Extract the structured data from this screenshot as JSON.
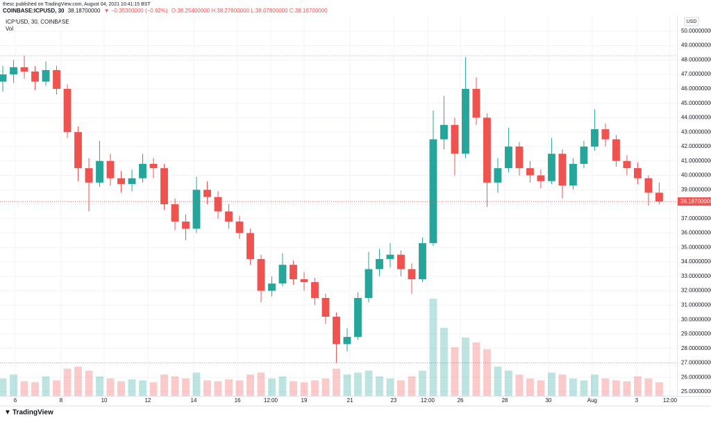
{
  "header": {
    "published": "thesc published on TradingView.com, August 04, 2021 10:41:15 BST",
    "symbol": "COINBASE:ICPUSD, 30",
    "last": "38.18700000",
    "change": "▼ −0.35300000 (−0.92%)",
    "ohlc": "O:38.25400000 H:38.27800000 L:38.07800000 C:38.18700000",
    "legend": "ICP/USD, 30, COINBASE",
    "volume_label": "Vol",
    "currency": "USD",
    "footer": "TradingView"
  },
  "chart_data": {
    "type": "candlestick",
    "up_color": "#26a69a",
    "down_color": "#ef5350",
    "grid": true,
    "open": [
      46.5,
      47.0,
      47.5,
      47.2,
      46.5,
      47.3,
      46.0,
      43.0,
      40.5,
      39.5,
      41.0,
      39.8,
      39.4,
      39.8,
      40.8,
      40.5,
      38.0,
      36.8,
      36.3,
      39.0,
      38.5,
      37.5,
      36.8,
      36.0,
      34.2,
      32.0,
      32.5,
      33.8,
      32.8,
      32.6,
      31.5,
      30.2,
      28.3,
      28.8,
      31.5,
      33.5,
      34.2,
      34.5,
      33.5,
      32.8,
      35.3,
      42.5,
      43.5,
      41.5,
      46.0,
      44.0,
      39.5,
      40.5,
      42.0,
      40.5,
      40.0,
      39.6,
      41.5,
      39.3,
      40.8,
      42.0,
      43.2,
      42.5,
      41.0,
      40.5,
      39.8,
      38.8
    ],
    "high": [
      47.6,
      48.0,
      48.3,
      47.6,
      47.9,
      47.6,
      46.3,
      43.4,
      41.2,
      42.4,
      41.5,
      40.3,
      40.4,
      41.5,
      41.2,
      40.8,
      38.4,
      37.3,
      39.9,
      39.6,
      38.9,
      38.0,
      37.2,
      36.3,
      34.5,
      33.0,
      34.6,
      34.1,
      33.3,
      32.9,
      31.8,
      30.5,
      29.4,
      31.9,
      34.7,
      34.9,
      35.3,
      34.8,
      33.9,
      35.7,
      44.5,
      45.5,
      44.0,
      48.2,
      46.8,
      44.3,
      41.2,
      43.3,
      42.3,
      41.0,
      40.4,
      42.6,
      41.8,
      41.2,
      42.4,
      44.6,
      43.6,
      42.8,
      41.4,
      40.9,
      40.0,
      39.5
    ],
    "low": [
      45.8,
      46.4,
      46.7,
      45.9,
      46.2,
      45.6,
      42.6,
      39.6,
      37.5,
      39.2,
      39.3,
      38.8,
      38.9,
      39.5,
      39.8,
      37.6,
      36.2,
      35.5,
      36.0,
      38.0,
      37.0,
      36.3,
      35.6,
      33.8,
      31.2,
      31.6,
      32.3,
      32.4,
      32.0,
      31.0,
      29.7,
      27.0,
      27.8,
      28.6,
      31.2,
      33.0,
      33.6,
      33.0,
      31.8,
      32.6,
      35.1,
      41.8,
      40.0,
      41.2,
      43.5,
      37.8,
      38.8,
      40.2,
      40.0,
      39.5,
      39.1,
      39.4,
      38.4,
      39.0,
      40.5,
      41.7,
      42.0,
      40.6,
      40.0,
      39.4,
      37.9,
      38.0
    ],
    "close": [
      47.0,
      47.5,
      47.2,
      46.5,
      47.3,
      46.0,
      43.0,
      40.5,
      39.5,
      41.0,
      39.8,
      39.4,
      39.8,
      40.8,
      40.5,
      38.0,
      36.8,
      36.3,
      39.0,
      38.5,
      37.5,
      36.8,
      36.0,
      34.2,
      32.0,
      32.5,
      33.8,
      32.8,
      32.6,
      31.5,
      30.2,
      28.3,
      28.8,
      31.5,
      33.5,
      34.2,
      34.5,
      33.5,
      32.8,
      35.3,
      42.5,
      43.5,
      41.5,
      46.0,
      44.0,
      39.5,
      40.5,
      42.0,
      40.5,
      40.0,
      39.6,
      41.5,
      39.3,
      40.8,
      42.0,
      43.2,
      42.5,
      41.0,
      40.5,
      39.8,
      38.8,
      38.187
    ],
    "volume": [
      18,
      22,
      15,
      14,
      20,
      16,
      28,
      30,
      26,
      20,
      18,
      15,
      17,
      16,
      14,
      22,
      20,
      18,
      24,
      16,
      15,
      17,
      16,
      22,
      24,
      18,
      20,
      15,
      14,
      16,
      18,
      28,
      22,
      24,
      26,
      20,
      18,
      16,
      20,
      26,
      100,
      70,
      50,
      60,
      55,
      48,
      30,
      26,
      22,
      18,
      16,
      24,
      22,
      18,
      16,
      22,
      18,
      16,
      15,
      20,
      18,
      14
    ],
    "volume_lim": [
      0,
      100
    ],
    "xlim": [
      -0.26,
      62.65
    ],
    "ylim": [
      24.71,
      51.1
    ],
    "xticks": [
      {
        "value": 1.16,
        "label": "6"
      },
      {
        "value": 5.42,
        "label": "8"
      },
      {
        "value": 9.42,
        "label": "10"
      },
      {
        "value": 13.48,
        "label": "12"
      },
      {
        "value": 17.74,
        "label": "14"
      },
      {
        "value": 21.81,
        "label": "16"
      },
      {
        "value": 24.9,
        "label": "12:00"
      },
      {
        "value": 28.0,
        "label": "19"
      },
      {
        "value": 32.26,
        "label": "21"
      },
      {
        "value": 36.32,
        "label": "23"
      },
      {
        "value": 39.48,
        "label": "12:00"
      },
      {
        "value": 42.52,
        "label": "26"
      },
      {
        "value": 46.65,
        "label": "28"
      },
      {
        "value": 50.71,
        "label": "30"
      },
      {
        "value": 54.77,
        "label": "Aug"
      },
      {
        "value": 58.9,
        "label": "3"
      },
      {
        "value": 62.0,
        "label": "12:00"
      }
    ],
    "yticks": [
      {
        "value": 25,
        "label": "25.00000000"
      },
      {
        "value": 26,
        "label": "26.00000000"
      },
      {
        "value": 27,
        "label": "27.00000000"
      },
      {
        "value": 28,
        "label": "28.00000000"
      },
      {
        "value": 29,
        "label": "29.00000000"
      },
      {
        "value": 30,
        "label": "30.00000000"
      },
      {
        "value": 31,
        "label": "31.00000000"
      },
      {
        "value": 32,
        "label": "32.00000000"
      },
      {
        "value": 33,
        "label": "33.00000000"
      },
      {
        "value": 34,
        "label": "34.00000000"
      },
      {
        "value": 35,
        "label": "35.00000000"
      },
      {
        "value": 36,
        "label": "36.00000000"
      },
      {
        "value": 37,
        "label": "37.00000000"
      },
      {
        "value": 38,
        "label": "38.00000000"
      },
      {
        "value": 39,
        "label": "39.00000000"
      },
      {
        "value": 40,
        "label": "40.00000000"
      },
      {
        "value": 41,
        "label": "41.00000000"
      },
      {
        "value": 42,
        "label": "42.00000000"
      },
      {
        "value": 43,
        "label": "43.00000000"
      },
      {
        "value": 44,
        "label": "44.00000000"
      },
      {
        "value": 45,
        "label": "45.00000000"
      },
      {
        "value": 46,
        "label": "46.00000000"
      },
      {
        "value": 47,
        "label": "47.00000000"
      },
      {
        "value": 48,
        "label": "48.00000000"
      },
      {
        "value": 49,
        "label": "49.00000000"
      },
      {
        "value": 50,
        "label": "50.00000000"
      }
    ],
    "range_lines": [
      48.3,
      27.0
    ],
    "last_price": {
      "value": 38.187,
      "label": "38.18700000"
    }
  }
}
